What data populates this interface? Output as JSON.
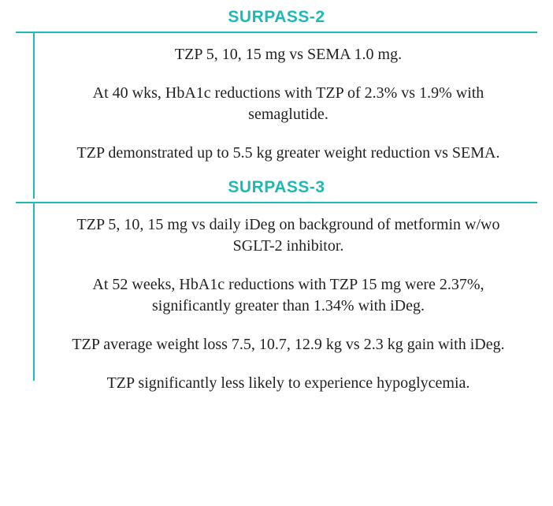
{
  "colors": {
    "accent": "#1fb8b8",
    "text": "#222222",
    "background": "#ffffff"
  },
  "typography": {
    "title_fontsize": 21,
    "title_weight": "bold",
    "title_family": "Arial, Helvetica, sans-serif",
    "body_fontsize": 20,
    "body_family": "Georgia, serif",
    "line_height": 1.35
  },
  "sections": [
    {
      "title": "SURPASS-2",
      "vline_height": 210,
      "paragraphs": [
        "TZP 5, 10, 15 mg vs SEMA 1.0 mg.",
        "At 40 wks, HbA1c reductions with TZP of 2.3% vs 1.9% with semaglutide.",
        "TZP demonstrated up to 5.5 kg greater weight reduction vs SEMA."
      ]
    },
    {
      "title": "SURPASS-3",
      "vline_height": 225,
      "paragraphs": [
        "TZP 5, 10, 15 mg vs daily iDeg on background of metformin w/wo SGLT-2 inhibitor.",
        "At 52 weeks, HbA1c reductions with TZP 15 mg were 2.37%, significantly greater than 1.34% with iDeg.",
        "TZP average weight loss 7.5, 10.7, 12.9 kg vs 2.3 kg gain with iDeg.",
        "TZP significantly less likely to experience hypoglycemia."
      ]
    }
  ]
}
